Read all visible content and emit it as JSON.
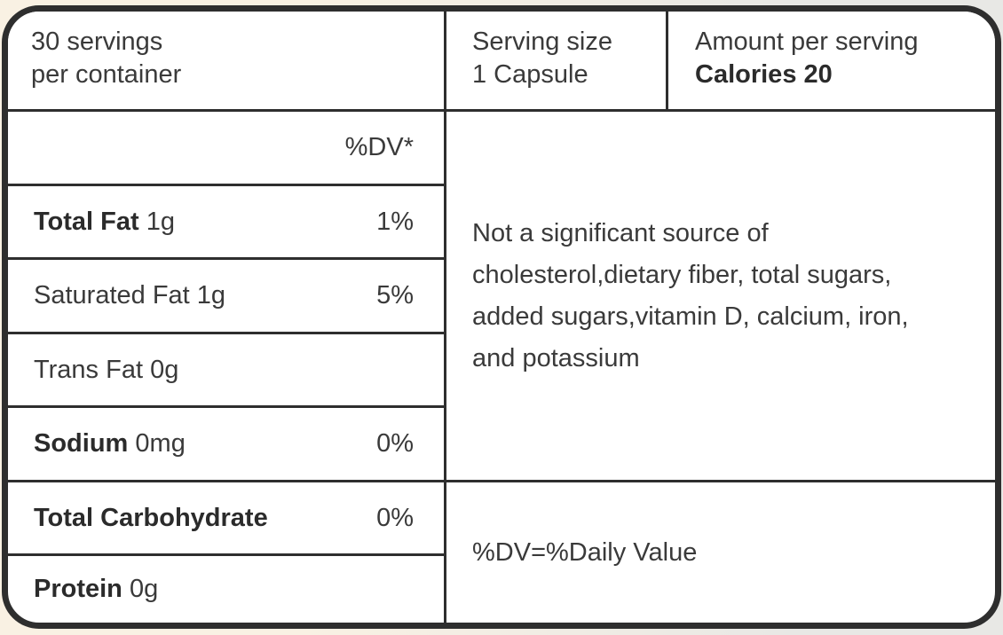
{
  "label": {
    "servings": {
      "line1": "30 servings",
      "line2": "per container"
    },
    "serving_size": {
      "label": "Serving size",
      "value": "1 Capsule"
    },
    "amount_per_serving": {
      "label": "Amount per serving",
      "calories": "Calories 20"
    },
    "dv_header": "%DV*",
    "nutrients": [
      {
        "name": "Total Fat",
        "amount": "1g",
        "dv": "1%"
      },
      {
        "name": "Saturated Fat",
        "amount": "1g",
        "dv": "5%"
      },
      {
        "name": "Trans Fat",
        "amount": "0g",
        "dv": ""
      },
      {
        "name": "Sodium",
        "amount": "0mg",
        "dv": "0%"
      },
      {
        "name": "Total Carbohydrate",
        "amount": "",
        "dv": "0%"
      },
      {
        "name": "Protein",
        "amount": "0g",
        "dv": ""
      }
    ],
    "not_significant": "Not a significant source of cholesterol,dietary fiber, total sugars, added sugars,vitamin D, calcium, iron, and potassium",
    "dv_note": "%DV=%Daily Value",
    "colors": {
      "border": "#2e2e2e",
      "text": "#3a3a3a",
      "text_bold": "#2b2b2b",
      "cell_background": "#ffffff",
      "page_background_left": "#f9f1e3",
      "page_background_right": "#e8e8e5"
    }
  }
}
